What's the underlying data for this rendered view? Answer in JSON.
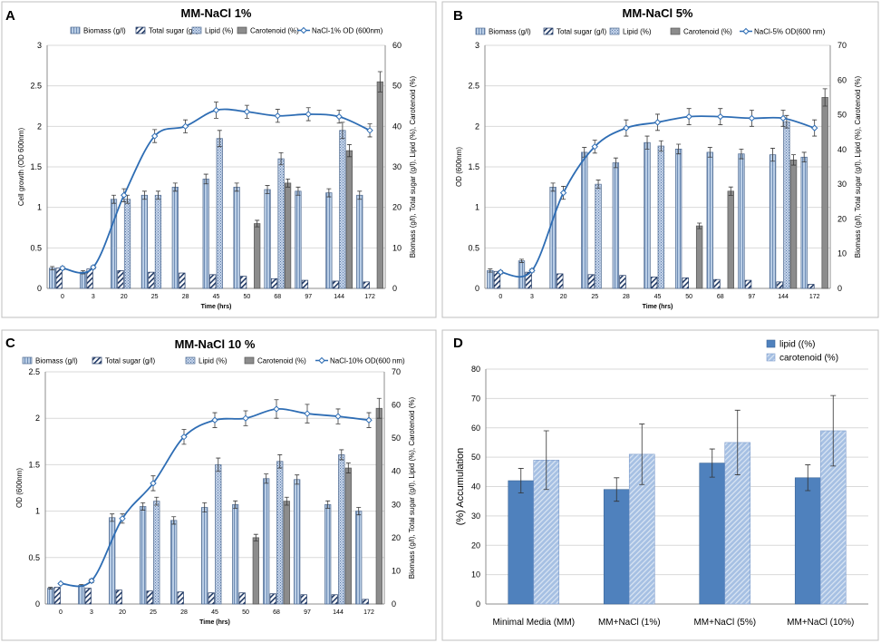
{
  "figure": {
    "panel_labels": [
      "A",
      "B",
      "C",
      "D"
    ],
    "colors": {
      "biomass_fill": "#b9cde5",
      "biomass_stroke": "#4f6a90",
      "sugar_stroke": "#1f3864",
      "lipid_fill": "#c6d5ea",
      "carotenoid_fill": "#8c8c8c",
      "od_line": "#2e6db4",
      "d_lipid": "#4f81bd",
      "d_carotenoid": "#a6c0e3",
      "grid": "#d9d9d9",
      "error": "#3a3a3a"
    }
  },
  "chart_data": [
    {
      "id": "A",
      "type": "bar",
      "title": "MM-NaCl 1%",
      "xlabel": "Time (hrs)",
      "ylabel": "Cell growth (OD 600nm)",
      "y2label": "Biomass (g/l), Total sugar (g/l), Lipid (%), Carotenoid (%)",
      "categories": [
        "0",
        "3",
        "20",
        "25",
        "28",
        "45",
        "50",
        "68",
        "97",
        "144",
        "172"
      ],
      "ylim": [
        0,
        3
      ],
      "y_ticks": [
        "0",
        "0.5",
        "1",
        "1.5",
        "2",
        "2.5",
        "3"
      ],
      "y2lim": [
        0,
        60
      ],
      "y2_ticks": [
        "0",
        "10",
        "20",
        "30",
        "40",
        "50",
        "60"
      ],
      "legend": [
        "Biomass (g/l)",
        "Total sugar (g/l)",
        "Lipid (%)",
        "Carotenoid (%)",
        "NaCl-1% OD (600nm)"
      ],
      "series": [
        {
          "name": "Biomass (g/l)",
          "axis": "left",
          "values": [
            0.25,
            0.2,
            1.1,
            1.15,
            1.25,
            1.35,
            1.25,
            1.22,
            1.2,
            1.18,
            1.15
          ],
          "error": [
            0.02,
            0.02,
            0.05,
            0.05,
            0.05,
            0.06,
            0.05,
            0.05,
            0.05,
            0.05,
            0.05
          ]
        },
        {
          "name": "Total sugar (g/l)",
          "axis": "left",
          "values": [
            0.25,
            0.24,
            0.22,
            0.2,
            0.19,
            0.17,
            0.15,
            0.12,
            0.1,
            0.09,
            0.08
          ],
          "error": [
            0,
            0,
            0,
            0,
            0,
            0,
            0,
            0,
            0,
            0,
            0
          ]
        },
        {
          "name": "Lipid (%)",
          "axis": "right",
          "values": [
            null,
            null,
            22,
            23,
            null,
            37,
            null,
            32,
            null,
            39,
            null
          ],
          "error": [
            0,
            0,
            1,
            1,
            0,
            2,
            0,
            1.5,
            0,
            2,
            0
          ]
        },
        {
          "name": "Carotenoid (%)",
          "axis": "right",
          "values": [
            null,
            null,
            null,
            null,
            null,
            null,
            16,
            26,
            null,
            34,
            51
          ],
          "error": [
            0,
            0,
            0,
            0,
            0,
            0,
            0.8,
            1,
            0,
            1.5,
            2.5
          ]
        },
        {
          "name": "NaCl-1% OD (600nm)",
          "axis": "left",
          "line": true,
          "values": [
            0.25,
            0.26,
            1.15,
            1.88,
            2.0,
            2.2,
            2.18,
            2.13,
            2.15,
            2.12,
            1.95
          ],
          "error": [
            0.02,
            0.02,
            0.08,
            0.08,
            0.08,
            0.1,
            0.08,
            0.08,
            0.08,
            0.08,
            0.08
          ]
        }
      ]
    },
    {
      "id": "B",
      "type": "bar",
      "title": "MM-NaCl 5%",
      "xlabel": "Time (hrs)",
      "ylabel": "OD (600nm)",
      "y2label": "Biomass (g/l), Total sugar (g/l), Lipid (%), Carotenoid (%)",
      "categories": [
        "0",
        "3",
        "20",
        "25",
        "28",
        "45",
        "50",
        "68",
        "97",
        "144",
        "172"
      ],
      "ylim": [
        0,
        3
      ],
      "y_ticks": [
        "0",
        "0.5",
        "1",
        "1.5",
        "2",
        "2.5",
        "3"
      ],
      "y2lim": [
        0,
        70
      ],
      "y2_ticks": [
        "0",
        "10",
        "20",
        "30",
        "40",
        "50",
        "60",
        "70"
      ],
      "legend": [
        "Biomass (g/l)",
        "Total sugar (g/l)",
        "Lipid (%)",
        "Carotenoid (%)",
        "NaCl-5% OD(600 nm)"
      ],
      "series": [
        {
          "name": "Biomass (g/l)",
          "axis": "left",
          "values": [
            0.22,
            0.34,
            1.25,
            1.68,
            1.55,
            1.8,
            1.72,
            1.68,
            1.66,
            1.65,
            1.62
          ],
          "error": [
            0.02,
            0.02,
            0.05,
            0.06,
            0.06,
            0.08,
            0.06,
            0.06,
            0.06,
            0.08,
            0.06
          ]
        },
        {
          "name": "Total sugar (g/l)",
          "axis": "left",
          "values": [
            0.21,
            0.2,
            0.18,
            0.17,
            0.16,
            0.14,
            0.13,
            0.11,
            0.1,
            0.08,
            0.05
          ],
          "error": [
            0,
            0,
            0,
            0,
            0,
            0,
            0,
            0,
            0,
            0,
            0
          ]
        },
        {
          "name": "Lipid (%)",
          "axis": "right",
          "values": [
            null,
            null,
            null,
            30,
            null,
            41,
            null,
            null,
            null,
            48,
            null
          ],
          "error": [
            0,
            0,
            0,
            1.2,
            0,
            1.5,
            0,
            0,
            0,
            1.8,
            0
          ]
        },
        {
          "name": "Carotenoid (%)",
          "axis": "right",
          "values": [
            null,
            null,
            null,
            null,
            null,
            null,
            18,
            28,
            null,
            37,
            55
          ],
          "error": [
            0,
            0,
            0,
            0,
            0,
            0,
            0.8,
            1.2,
            0,
            1.5,
            2.5
          ]
        },
        {
          "name": "NaCl-5% OD(600 nm)",
          "axis": "left",
          "line": true,
          "values": [
            0.2,
            0.22,
            1.18,
            1.75,
            1.98,
            2.05,
            2.12,
            2.12,
            2.1,
            2.1,
            1.98
          ],
          "error": [
            0.02,
            0.02,
            0.08,
            0.08,
            0.1,
            0.1,
            0.1,
            0.1,
            0.1,
            0.1,
            0.1
          ]
        }
      ]
    },
    {
      "id": "C",
      "type": "bar",
      "title": "MM-NaCl 10 %",
      "xlabel": "Time (hrs)",
      "ylabel": "OD (600nm)",
      "y2label": "Biomass (g/l), Total sugar (g/l), Lipid (%), Carotenoid (%)",
      "categories": [
        "0",
        "3",
        "20",
        "25",
        "28",
        "45",
        "50",
        "68",
        "97",
        "144",
        "172"
      ],
      "ylim": [
        0,
        2.5
      ],
      "y_ticks": [
        "0",
        "0.5",
        "1",
        "1.5",
        "2",
        "2.5"
      ],
      "y2lim": [
        0,
        70
      ],
      "y2_ticks": [
        "0",
        "10",
        "20",
        "30",
        "40",
        "50",
        "60",
        "70"
      ],
      "legend": [
        "Biomass (g/l)",
        "Total sugar (g/l)",
        "Lipid (%)",
        "Carotenoid (%)",
        "NaCl-10% OD(600 nm)"
      ],
      "series": [
        {
          "name": "Biomass (g/l)",
          "axis": "left",
          "values": [
            0.17,
            0.2,
            0.93,
            1.05,
            0.9,
            1.04,
            1.07,
            1.35,
            1.34,
            1.07,
            1.0
          ],
          "error": [
            0.01,
            0.01,
            0.04,
            0.04,
            0.04,
            0.05,
            0.04,
            0.05,
            0.05,
            0.04,
            0.04
          ]
        },
        {
          "name": "Total sugar (g/l)",
          "axis": "left",
          "values": [
            0.18,
            0.17,
            0.15,
            0.14,
            0.13,
            0.12,
            0.12,
            0.11,
            0.1,
            0.1,
            0.05
          ],
          "error": [
            0,
            0,
            0,
            0,
            0,
            0,
            0,
            0,
            0,
            0,
            0
          ]
        },
        {
          "name": "Lipid (%)",
          "axis": "right",
          "values": [
            null,
            null,
            null,
            31,
            null,
            42,
            null,
            43,
            null,
            45,
            null
          ],
          "error": [
            0,
            0,
            0,
            1.2,
            0,
            2,
            0,
            2,
            0,
            1.5,
            0
          ]
        },
        {
          "name": "Carotenoid (%)",
          "axis": "right",
          "values": [
            null,
            null,
            null,
            null,
            null,
            null,
            20,
            31,
            null,
            41,
            59
          ],
          "error": [
            0,
            0,
            0,
            0,
            0,
            0,
            1,
            1.2,
            0,
            1.5,
            3
          ]
        },
        {
          "name": "NaCl-10% OD(600 nm)",
          "axis": "left",
          "line": true,
          "values": [
            0.22,
            0.25,
            0.92,
            1.3,
            1.8,
            1.98,
            2.0,
            2.1,
            2.05,
            2.02,
            1.98
          ],
          "error": [
            0.01,
            0.02,
            0.05,
            0.08,
            0.08,
            0.08,
            0.08,
            0.1,
            0.1,
            0.08,
            0.08
          ]
        }
      ]
    },
    {
      "id": "D",
      "type": "bar",
      "title": "",
      "xlabel": "",
      "ylabel": "(%) Accumulation",
      "categories": [
        "Minimal Media (MM)",
        "MM+NaCl (1%)",
        "MM+NaCl (5%)",
        "MM+NaCl (10%)"
      ],
      "ylim": [
        0,
        80
      ],
      "y_ticks": [
        "0",
        "10",
        "20",
        "30",
        "40",
        "50",
        "60",
        "70",
        "80"
      ],
      "legend": [
        "lipid ((%)",
        "carotenoid (%)"
      ],
      "series": [
        {
          "name": "lipid ((%)",
          "values": [
            42,
            39,
            48,
            43
          ],
          "error": [
            4.2,
            4,
            4.8,
            4.4
          ]
        },
        {
          "name": "carotenoid (%)",
          "values": [
            49,
            51,
            55,
            59
          ],
          "error": [
            10,
            10.3,
            11,
            12
          ]
        }
      ]
    }
  ]
}
